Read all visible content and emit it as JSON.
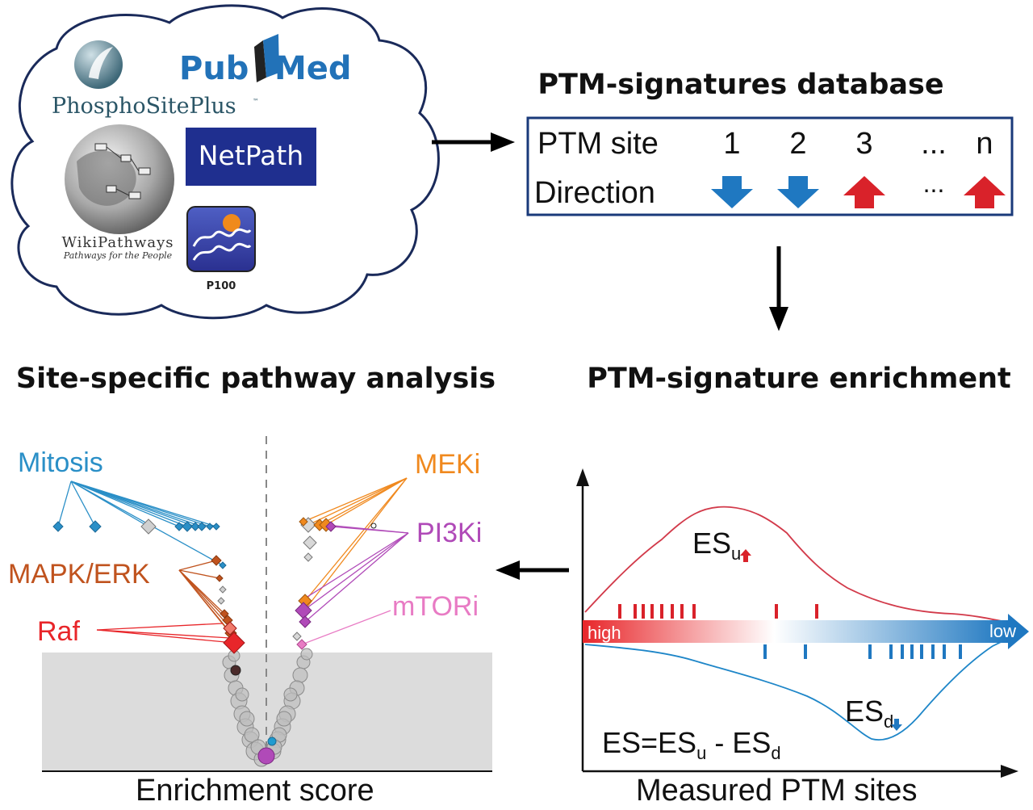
{
  "sources": {
    "phosphositeplus": "PhosphoSitePlus",
    "phosphositeplus_tm": "™",
    "pubmed": [
      "Pub",
      "Med"
    ],
    "netpath": "NetPath",
    "wikipathways": "WikiPathways",
    "wikipathways_tagline": "Pathways for the People",
    "p100": "P100"
  },
  "database": {
    "title": "PTM-signatures database",
    "row1_label": "PTM site",
    "row2_label": "Direction",
    "sites": [
      "1",
      "2",
      "3",
      "...",
      "n"
    ],
    "direction_ellipsis": "...",
    "directions": [
      "down",
      "down",
      "up",
      "",
      "up"
    ]
  },
  "enrichment": {
    "title": "PTM-signature enrichment",
    "es_up_base": "ES",
    "es_up_sub": "u",
    "es_down_base": "ES",
    "es_down_sub": "d",
    "formula_lhs": "ES=ES",
    "formula_sub1": "u",
    "formula_mid": " - ES",
    "formula_sub2": "d",
    "gradient_high": "high",
    "gradient_low": "low",
    "xlabel": "Measured PTM sites",
    "colors": {
      "up": "#d9222a",
      "down": "#1f78c1"
    }
  },
  "pathway": {
    "title": "Site-specific pathway analysis",
    "labels": {
      "mitosis": "Mitosis",
      "mapk": "MAPK/ERK",
      "raf": "Raf",
      "meki": "MEKi",
      "pi3ki": "PI3Ki",
      "mtori": "mTORi"
    },
    "colors": {
      "mitosis": "#2a8fc7",
      "mapk": "#c0531e",
      "raf": "#e8262a",
      "meki": "#f0891e",
      "pi3ki": "#b04ab8",
      "mtori": "#e87bc4"
    },
    "xlabel": "Enrichment score"
  }
}
